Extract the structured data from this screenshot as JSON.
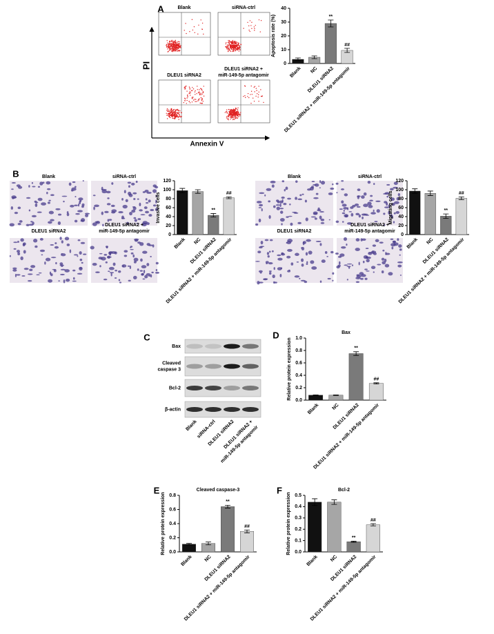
{
  "panels": [
    "A",
    "B",
    "C",
    "D",
    "E",
    "F"
  ],
  "flow": {
    "titles": [
      [
        "Blank"
      ],
      [
        "siRNA-ctrl"
      ],
      [
        "DLEU1 siRNA2"
      ],
      [
        "DLEU1 siRNA2 +",
        "miR-149-5p antagomir"
      ]
    ],
    "y_axis": "PI",
    "x_axis": "Annexin V"
  },
  "invasion_images": [
    [
      "Blank"
    ],
    [
      "siRNA-ctrl"
    ],
    [
      "DLEU1 siRNA2"
    ],
    [
      "DLEU1 siRNA2 +",
      "miR-149-5p antagomir"
    ]
  ],
  "migration_images": [
    [
      "Blank"
    ],
    [
      "siRNA-ctrl"
    ],
    [
      "DLEU1 siRNA2"
    ],
    [
      "DLEU1 siRNA2 +",
      "miR-149-5p antagomir"
    ]
  ],
  "western": {
    "rows": [
      [
        "Bax"
      ],
      [
        "Cleaved",
        "caspase 3"
      ],
      [
        "Bcl-2"
      ],
      [
        "β-actin"
      ]
    ],
    "lanes": [
      [
        "Blank"
      ],
      [
        "siRNA-ctrl"
      ],
      [
        "DLEU1 siRNA2"
      ],
      [
        "DLEU1 siRNA2 +",
        "miR-149-5p antagomir"
      ]
    ]
  },
  "chart_data": [
    {
      "type": "bar",
      "ylabel": "Apoptosis rate (%)",
      "categories": [
        "Blank",
        "NC",
        "DLEU1 siRNA2",
        "DLEU1 siRNA2 + miR-149-5p antagomir"
      ],
      "values": [
        3,
        4.5,
        29,
        9.5
      ],
      "errors": [
        1,
        1,
        2.5,
        1.5
      ],
      "colors": [
        "#111111",
        "#a6a6a6",
        "#7a7a7a",
        "#d6d6d6"
      ],
      "annotations": [
        null,
        null,
        "**",
        "##"
      ],
      "ylim": [
        0,
        40
      ],
      "yticks": [
        0,
        10,
        20,
        30,
        40
      ]
    },
    {
      "type": "bar",
      "ylabel": "Invasive cells",
      "categories": [
        "Blank",
        "NC",
        "DLEU1 siRNA2",
        "DLEU1 siRNA2 + miR-149-5p antagomir"
      ],
      "values": [
        98,
        96,
        43,
        82
      ],
      "errors": [
        5,
        4,
        4,
        2
      ],
      "colors": [
        "#111111",
        "#a6a6a6",
        "#7a7a7a",
        "#d6d6d6"
      ],
      "annotations": [
        null,
        null,
        "**",
        "##"
      ],
      "ylim": [
        0,
        120
      ],
      "yticks": [
        0,
        20,
        40,
        60,
        80,
        100,
        120
      ]
    },
    {
      "type": "bar",
      "ylabel": "Migrating cells",
      "categories": [
        "Blank",
        "NC",
        "DLEU1 siRNA2",
        "DLEU1 siRNA2 + miR-149-5p antagomir"
      ],
      "values": [
        97,
        92,
        41,
        81
      ],
      "errors": [
        5,
        5,
        5,
        3
      ],
      "colors": [
        "#111111",
        "#a6a6a6",
        "#7a7a7a",
        "#d6d6d6"
      ],
      "annotations": [
        null,
        null,
        "**",
        "##"
      ],
      "ylim": [
        0,
        120
      ],
      "yticks": [
        0,
        20,
        40,
        60,
        80,
        100,
        120
      ]
    },
    {
      "type": "bar",
      "title": "Bax",
      "ylabel": "Relative protein expression",
      "categories": [
        "Blank",
        "NC",
        "DLEU1 siRNA2",
        "DLEU1 siRNA2 + miR-149-5p antagomir"
      ],
      "values": [
        0.08,
        0.08,
        0.75,
        0.27
      ],
      "errors": [
        0.005,
        0.005,
        0.03,
        0.01
      ],
      "colors": [
        "#111111",
        "#a6a6a6",
        "#7a7a7a",
        "#d6d6d6"
      ],
      "annotations": [
        null,
        null,
        "**",
        "##"
      ],
      "ylim": [
        0,
        1
      ],
      "yticks": [
        {
          "value": 0,
          "label": "0.0"
        },
        0.2,
        0.4,
        0.6,
        0.8,
        {
          "value": 1,
          "label": "1.0"
        }
      ]
    },
    {
      "type": "bar",
      "title": "Cleaved caspase-3",
      "ylabel": "Relative protein expression",
      "categories": [
        "Blank",
        "NC",
        "DLEU1 siRNA2",
        "DLEU1 siRNA2 + miR-149-5p antagomir"
      ],
      "values": [
        0.11,
        0.12,
        0.64,
        0.29
      ],
      "errors": [
        0.01,
        0.02,
        0.02,
        0.02
      ],
      "colors": [
        "#111111",
        "#a6a6a6",
        "#7a7a7a",
        "#d6d6d6"
      ],
      "annotations": [
        null,
        null,
        "**",
        "##"
      ],
      "ylim": [
        0,
        0.8
      ],
      "yticks": [
        {
          "value": 0,
          "label": "0.0"
        },
        0.2,
        0.4,
        0.6,
        0.8
      ]
    },
    {
      "type": "bar",
      "title": "Bcl-2",
      "ylabel": "Relative protein expression",
      "categories": [
        "Blank",
        "NC",
        "DLEU1 siRNA2",
        "DLEU1 siRNA2 + miR-149-5p antagomir"
      ],
      "values": [
        0.44,
        0.44,
        0.09,
        0.24
      ],
      "errors": [
        0.03,
        0.02,
        0.005,
        0.01
      ],
      "colors": [
        "#111111",
        "#a6a6a6",
        "#7a7a7a",
        "#d6d6d6"
      ],
      "annotations": [
        null,
        null,
        "**",
        "##"
      ],
      "ylim": [
        0,
        0.5
      ],
      "yticks": [
        {
          "value": 0,
          "label": "0.0"
        },
        0.1,
        0.2,
        0.3,
        0.4,
        0.5
      ]
    }
  ]
}
